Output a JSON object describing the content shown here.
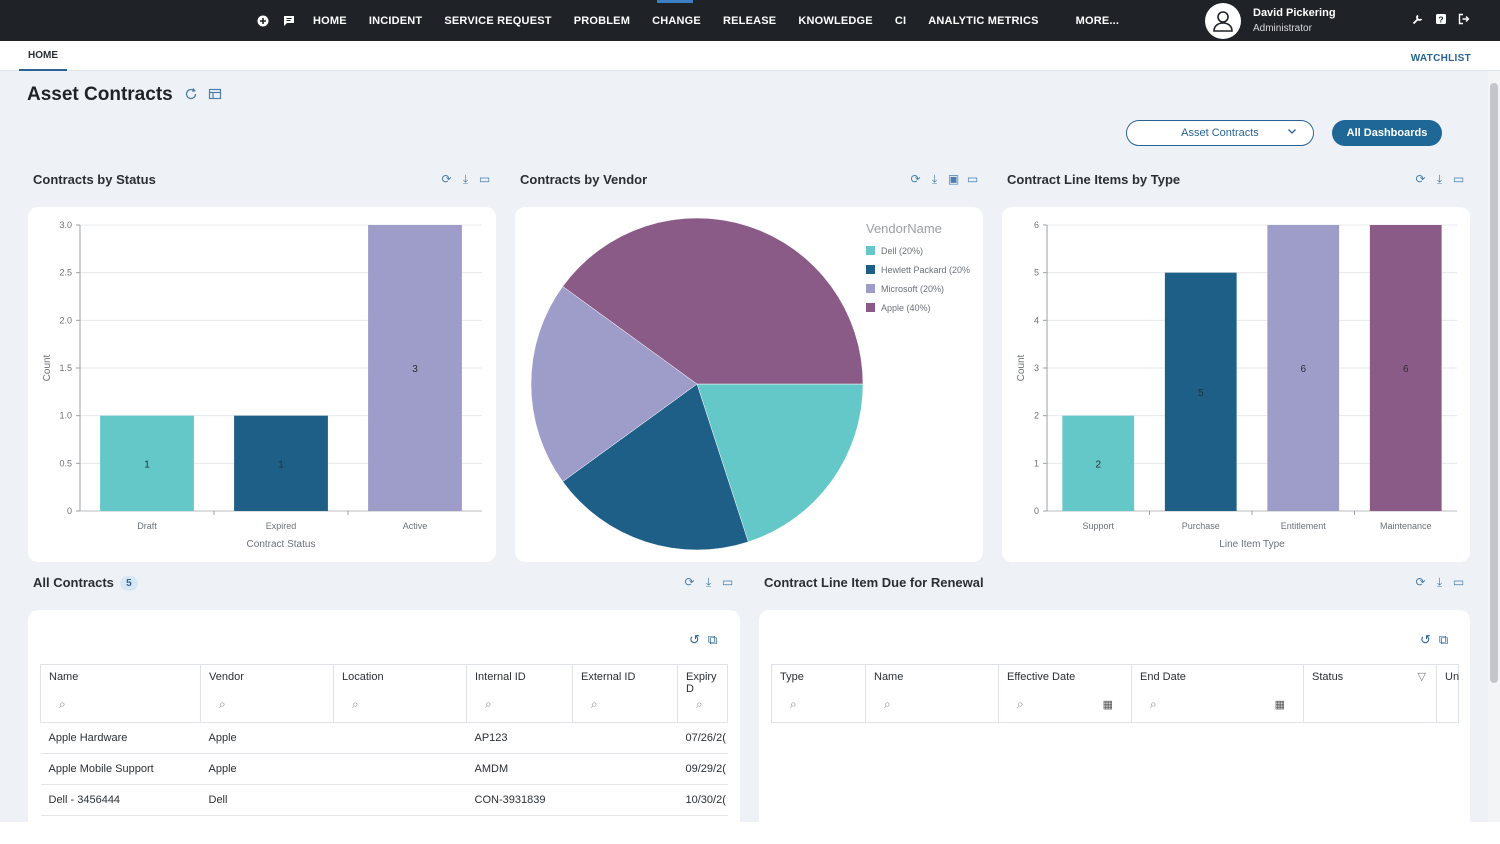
{
  "nav": {
    "items": [
      "HOME",
      "INCIDENT",
      "SERVICE REQUEST",
      "PROBLEM",
      "CHANGE",
      "RELEASE",
      "KNOWLEDGE",
      "CI",
      "ANALYTIC METRICS"
    ],
    "more": "MORE..."
  },
  "user": {
    "name": "David Pickering",
    "role": "Administrator"
  },
  "tabs": {
    "home": "HOME",
    "watchlist": "WATCHLIST"
  },
  "page": {
    "title": "Asset Contracts",
    "dashboard_select": "Asset Contracts",
    "all_dashboards": "All Dashboards"
  },
  "colors": {
    "teal": "#64c7c8",
    "navy": "#1e5f87",
    "lavender": "#9e9cc8",
    "plum": "#8a5b86",
    "accent": "#1f6796"
  },
  "widgets": {
    "by_status": {
      "title": "Contracts by Status"
    },
    "by_vendor": {
      "title": "Contracts by Vendor"
    },
    "line_items": {
      "title": "Contract Line Items by Type"
    },
    "all_contracts": {
      "title": "All Contracts",
      "count": "5"
    },
    "renewal": {
      "title": "Contract Line Item Due for Renewal"
    }
  },
  "chart_data": [
    {
      "type": "bar",
      "categories": [
        "Draft",
        "Expired",
        "Active"
      ],
      "values": [
        1,
        1,
        3
      ],
      "data_labels": [
        "1",
        "1",
        "3"
      ],
      "xlabel": "Contract Status",
      "ylabel": "Count",
      "ylim": [
        0,
        3
      ],
      "yticks": [
        "0",
        "0.5",
        "1.0",
        "1.5",
        "2.0",
        "2.5",
        "3.0"
      ],
      "tick_values": [
        0,
        0.5,
        1,
        1.5,
        2,
        2.5,
        3
      ],
      "bar_colors": [
        "#64c7c8",
        "#1e5f87",
        "#9e9cc8"
      ]
    },
    {
      "type": "pie",
      "legend_title": "VendorName",
      "legend_position": "top-right",
      "slices": [
        {
          "label": "Dell (20%)",
          "value": 20,
          "color": "#64c7c8"
        },
        {
          "label": "Hewlett Packard (20%",
          "value": 20,
          "color": "#1e5f87"
        },
        {
          "label": "Microsoft (20%)",
          "value": 20,
          "color": "#9e9cc8"
        },
        {
          "label": "Apple (40%)",
          "value": 40,
          "color": "#8a5b86"
        }
      ]
    },
    {
      "type": "bar",
      "categories": [
        "Support",
        "Purchase",
        "Entitlement",
        "Maintenance"
      ],
      "values": [
        2,
        5,
        6,
        6
      ],
      "data_labels": [
        "2",
        "5",
        "6",
        "6"
      ],
      "xlabel": "Line Item Type",
      "ylabel": "Count",
      "ylim": [
        0,
        6
      ],
      "yticks": [
        "0",
        "1",
        "2",
        "3",
        "4",
        "5",
        "6"
      ],
      "tick_values": [
        0,
        1,
        2,
        3,
        4,
        5,
        6
      ],
      "bar_colors": [
        "#64c7c8",
        "#1e5f87",
        "#9e9cc8",
        "#8a5b86"
      ]
    }
  ],
  "contracts_table": {
    "columns": [
      "Name",
      "Vendor",
      "Location",
      "Internal ID",
      "External ID",
      "Expiry D"
    ],
    "rows": [
      [
        "Apple Hardware",
        "Apple",
        "",
        "AP123",
        "",
        "07/26/2("
      ],
      [
        "Apple Mobile Support",
        "Apple",
        "",
        "AMDM",
        "",
        "09/29/2("
      ],
      [
        "Dell - 3456444",
        "Dell",
        "",
        "CON-3931839",
        "",
        "10/30/2("
      ]
    ]
  },
  "renewal_table": {
    "columns": [
      "Type",
      "Name",
      "Effective Date",
      "End Date",
      "Status",
      "Un"
    ]
  }
}
